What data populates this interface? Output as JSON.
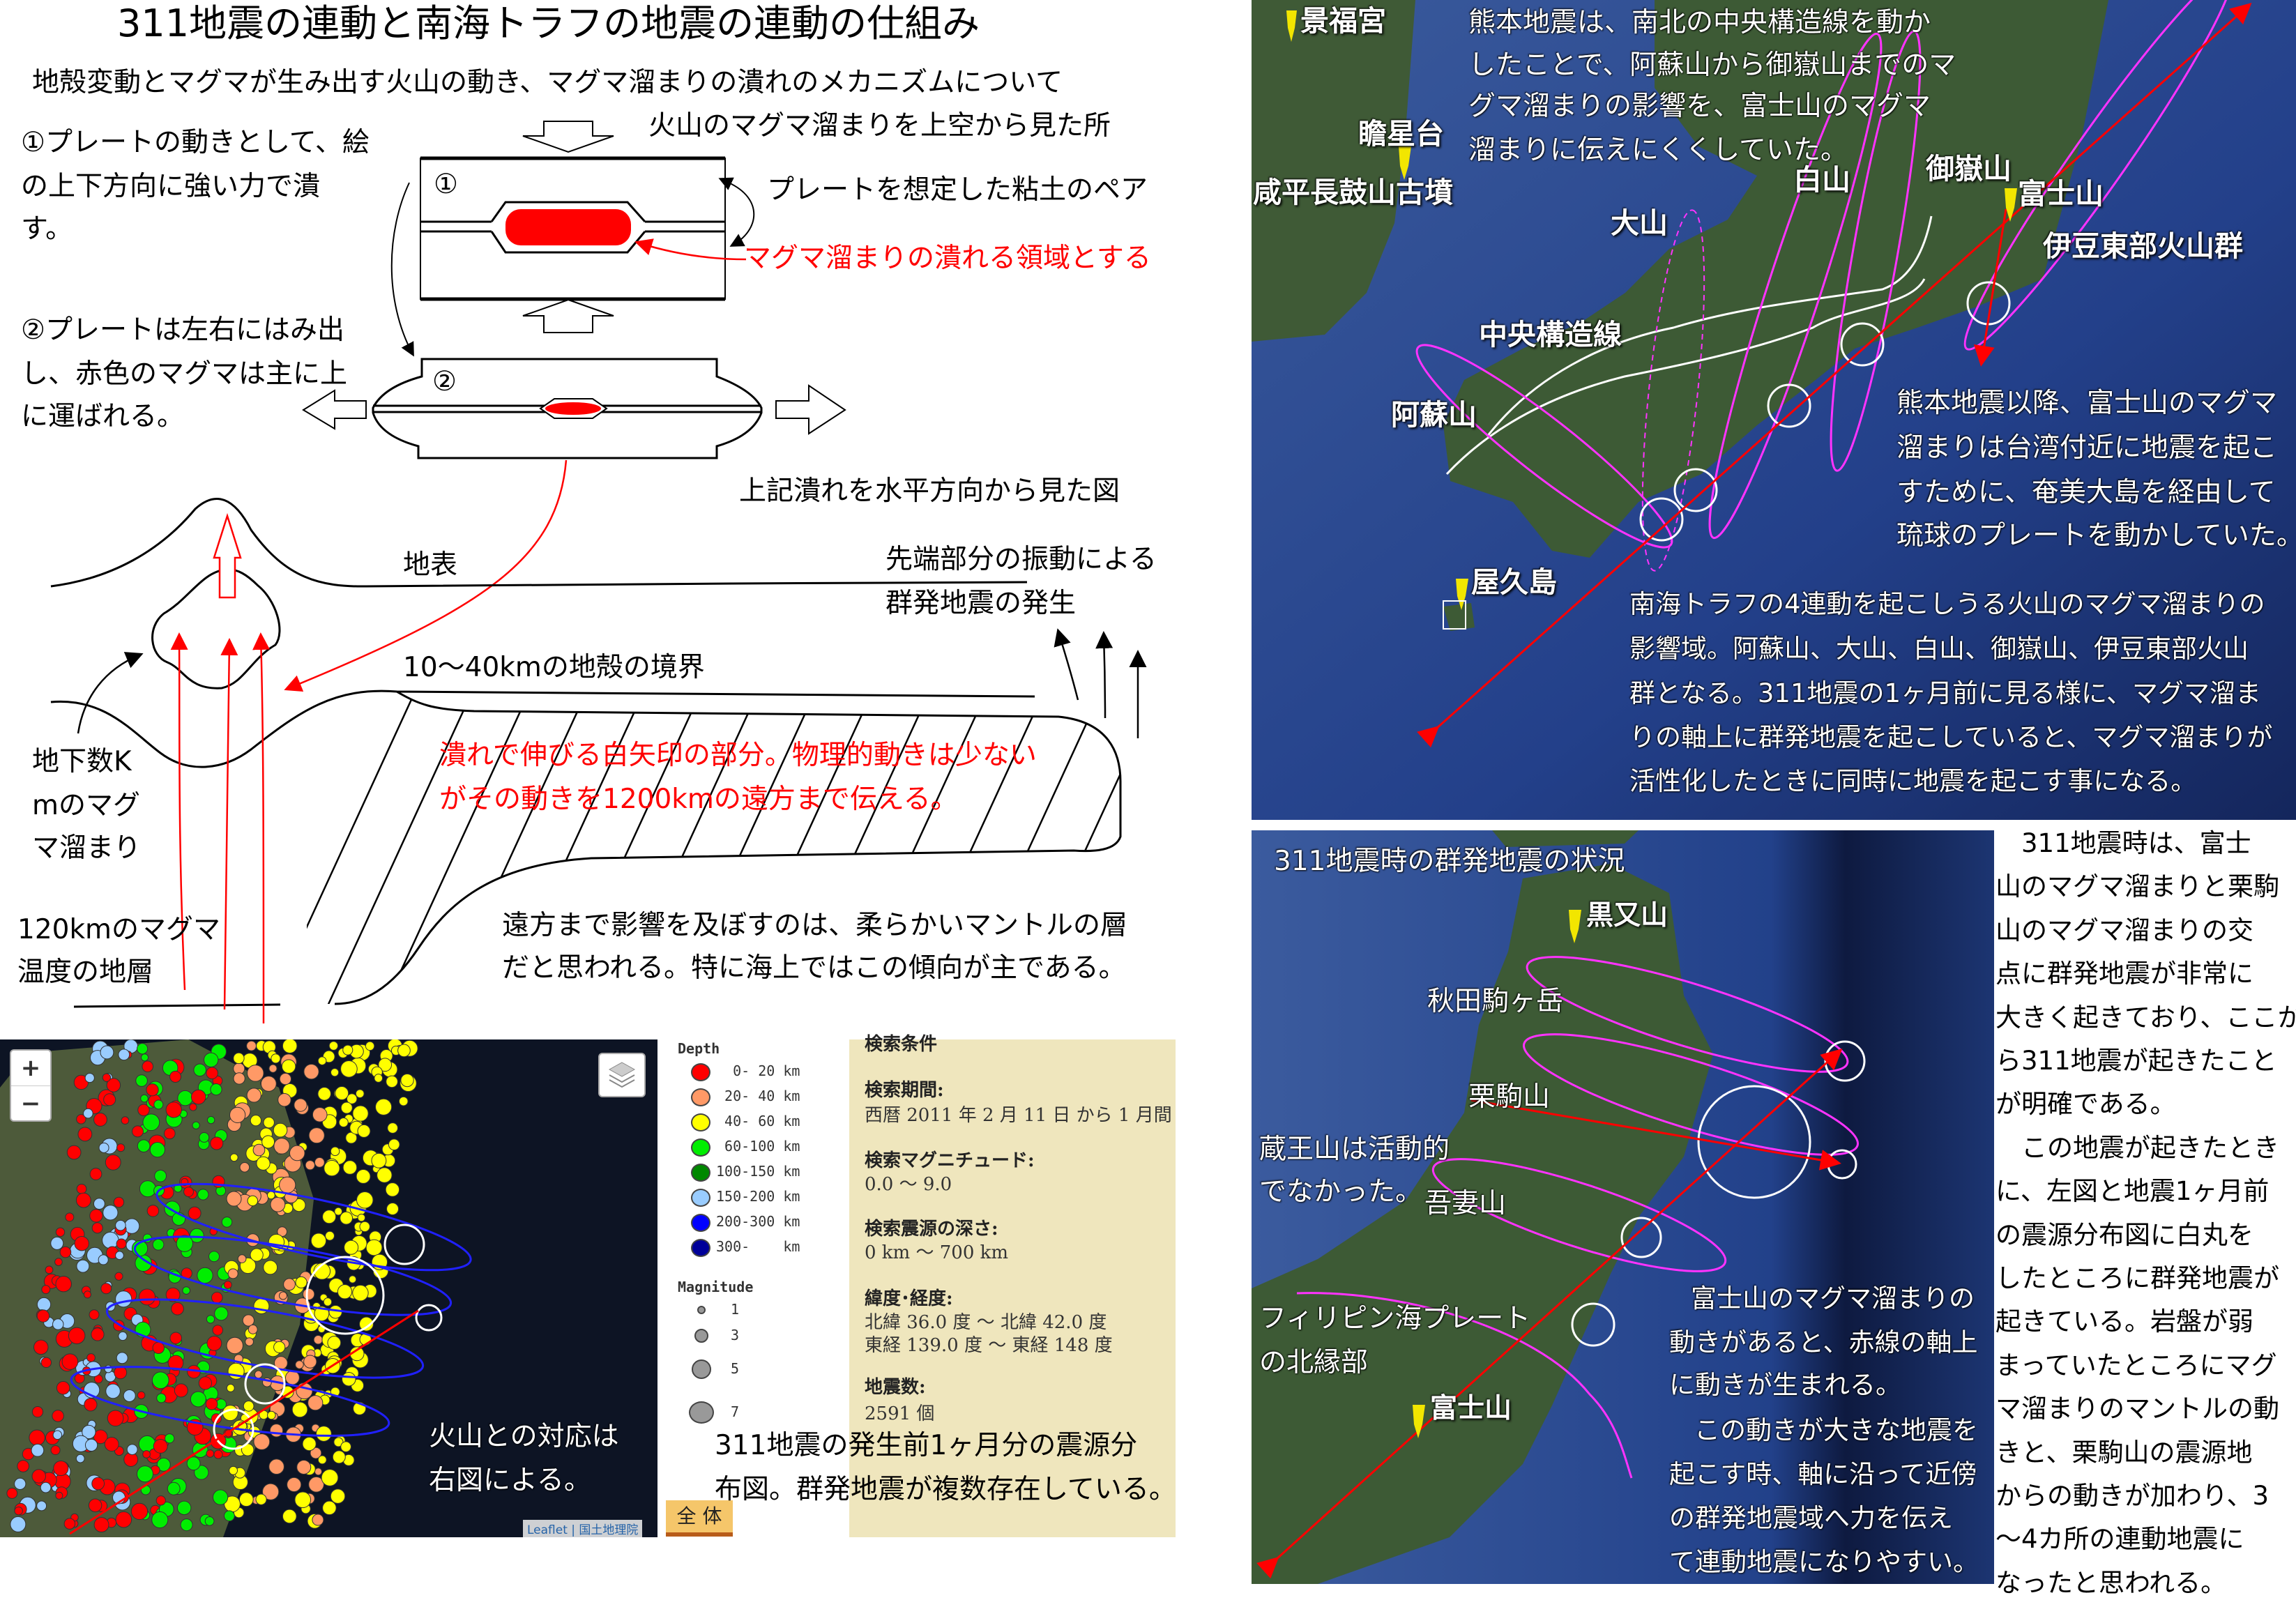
{
  "left": {
    "title": "311地震の連動と南海トラフの地震の連動の仕組み",
    "subtitle": "地殻変動とマグマが生み出す火山の動き、マグマ溜まりの潰れのメカニズムについて",
    "top_view_label": "火山のマグマ溜まりを上空から見た所",
    "step1_lines": [
      "①プレートの動きとして、絵",
      "の上下方向に強い力で潰",
      "す。"
    ],
    "box1_number": "①",
    "plate_pair_label": "プレートを想定した粘土のペア",
    "magma_region_label": "マグマ溜まりの潰れる領域とする",
    "step2_lines": [
      "②プレートは左右にはみ出",
      "し、赤色のマグマは主に上",
      "に運ばれる。"
    ],
    "box2_number": "②",
    "side_view_label": "上記潰れを水平方向から見た図",
    "surface_label": "地表",
    "swarm_lines": [
      "先端部分の振動による",
      "群発地震の発生"
    ],
    "crust_boundary_label": "10〜40kmの地殻の境界",
    "red_note_lines": [
      "潰れで伸びる白矢印の部分。物理的動きは少ない",
      "がその動きを1200kmの遠方まで伝える。"
    ],
    "magma_chamber_lines": [
      "地下数K",
      "mのマグ",
      "マ溜まり"
    ],
    "magma_layer_lines": [
      "120kmのマグマ",
      "温度の地層"
    ],
    "mantle_note_lines": [
      "遠方まで影響を及ぼすのは、柔らかいマントルの層",
      "だと思われる。特に海上ではこの傾向が主である。"
    ],
    "colors": {
      "magma": "#ff0000",
      "line": "#000000"
    }
  },
  "seismic_map": {
    "zoom_in": "+",
    "zoom_out": "−",
    "layers_icon": "layers-icon",
    "overlay_lines": [
      "火山との対応は",
      "右図による。"
    ],
    "attribution": "Leaflet | 国土地理院",
    "legend": {
      "depth_title": "Depth",
      "depth_items": [
        {
          "label": "  0- 20 km",
          "color": "#ff0000"
        },
        {
          "label": " 20- 40 km",
          "color": "#ff9966"
        },
        {
          "label": " 40- 60 km",
          "color": "#ffff00"
        },
        {
          "label": " 60-100 km",
          "color": "#00ee00"
        },
        {
          "label": "100-150 km",
          "color": "#008800"
        },
        {
          "label": "150-200 km",
          "color": "#99ccff"
        },
        {
          "label": "200-300 km",
          "color": "#0000ff"
        },
        {
          "label": "300-    km",
          "color": "#000099"
        }
      ],
      "magnitude_title": "Magnitude",
      "magnitude_items": [
        "1",
        "3",
        "5",
        "7"
      ]
    },
    "search": {
      "heading": "検索条件",
      "period_label": "検索期間:",
      "period_value": "西暦 2011 年 2 月 11 日 から 1 月間",
      "magnitude_label": "検索マグニチュード:",
      "magnitude_value": "0.0 〜 9.0",
      "depth_label": "検索震源の深さ:",
      "depth_value": " 0 km 〜 700 km",
      "latlon_label": "緯度･経度:",
      "lat_value": "北緯 36.0 度 〜 北緯 42.0 度",
      "lon_value": "東経 139.0 度 〜 東経 148 度",
      "count_label": "地震数:",
      "count_value": "2591 個"
    },
    "full_button": "全 体",
    "caption_lines": [
      "311地震の発生前1ヶ月分の震源分",
      "布図。群発地震が複数存在している。"
    ]
  },
  "top_map": {
    "places": {
      "gyeongbokgung": "景福宮",
      "cheomseongdae": "瞻星台",
      "tomb": "咸平長鼓山古墳",
      "yakushima": "屋久島"
    },
    "volcanoes": {
      "hakusan": "白山",
      "ontake": "御嶽山",
      "fuji": "富士山",
      "daisen": "大山",
      "izu": "伊豆東部火山群",
      "aso": "阿蘇山"
    },
    "fault_label": "中央構造線",
    "kumamoto_lines": [
      "熊本地震は、南北の中央構造線を動か",
      "したことで、阿蘇山から御嶽山までのマ",
      "グマ溜まりの影響を、富士山のマグマ",
      "溜まりに伝えにくくしていた。"
    ],
    "after_lines": [
      "熊本地震以降、富士山のマグマ",
      "溜まりは台湾付近に地震を起こ",
      "すために、奄美大島を経由して",
      "琉球のプレートを動かしていた。"
    ],
    "nankai_lines": [
      "南海トラフの4連動を起こしうる火山のマグマ溜まりの",
      "影響域。阿蘇山、大山、白山、御嶽山、伊豆東部火山",
      "群となる。311地震の1ヶ月前に見る様に、マグマ溜ま",
      "りの軸上に群発地震を起こしていると、マグマ溜まりが",
      "活性化したときに同時に地震を起こす事になる。"
    ],
    "colors": {
      "sea": "#2b4a8e",
      "land": "#3d5a35",
      "ellipse": "#ff33ff",
      "axis": "#ff0000",
      "pin": "#f2e600"
    }
  },
  "bottom_map": {
    "title": "311地震時の群発地震の状況",
    "places": {
      "kuromata": "黒又山",
      "akita_komagatake": "秋田駒ヶ岳",
      "kurikoma": "栗駒山",
      "azuma": "吾妻山",
      "fuji": "富士山"
    },
    "zao_lines": [
      "蔵王山は活動的",
      "でなかった。"
    ],
    "plate_lines": [
      "フィリピン海プレート",
      "の北縁部"
    ],
    "fuji_lines": [
      "富士山のマグマ溜まりの",
      "動きがあると、赤線の軸上",
      "に動きが生まれる。"
    ],
    "chain_lines": [
      "この動きが大きな地震を",
      "起こす時、軸に沿って近傍",
      "の群発地震域へ力を伝え",
      "て連動地震になりやすい。"
    ]
  },
  "right_column": {
    "lines": [
      "　311地震時は、富士",
      "山のマグマ溜まりと栗駒",
      "山のマグマ溜まりの交",
      "点に群発地震が非常に",
      "大きく起きており、ここか",
      "ら311地震が起きたこと",
      "が明確である。",
      "　この地震が起きたとき",
      "に、左図と地震1ヶ月前",
      "の震源分布図に白丸を",
      "したところに群発地震が",
      "起きている。岩盤が弱",
      "まっていたところにマグ",
      "マ溜まりのマントルの動",
      "きと、栗駒山の震源地",
      "からの動きが加わり、3",
      "〜4カ所の連動地震に",
      "なったと思われる。"
    ]
  }
}
